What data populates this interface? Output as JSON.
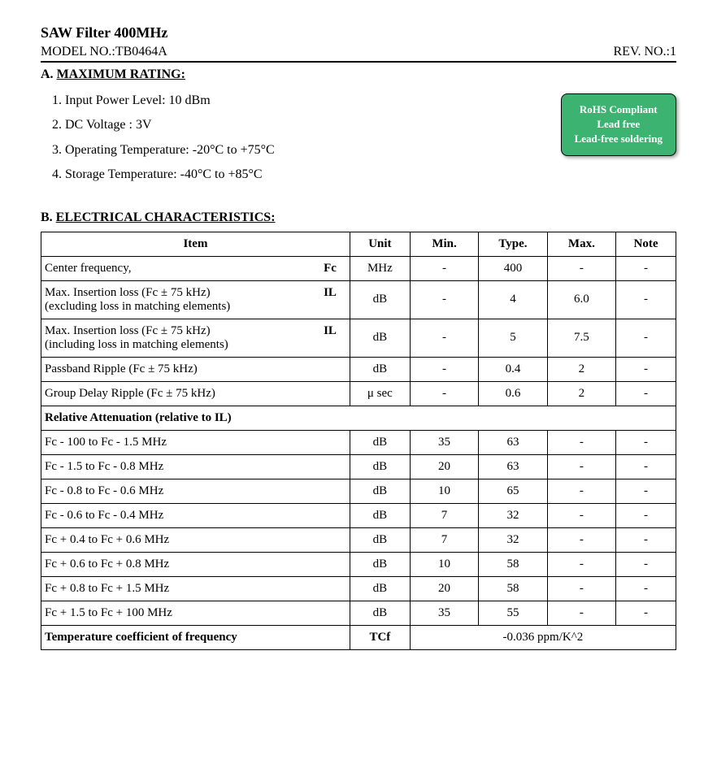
{
  "header": {
    "title": "SAW Filter 400MHz",
    "model_label": "MODEL NO.:TB0464A",
    "rev_label": "REV. NO.:1"
  },
  "sectionA": {
    "heading_prefix": "A. ",
    "heading": "MAXIMUM RATING:",
    "items": [
      "1. Input Power Level: 10 dBm",
      "2. DC Voltage : 3V",
      "3. Operating Temperature: -20°C to +75°C",
      "4. Storage Temperature: -40°C to +85°C"
    ],
    "badge": {
      "line1": "RoHS Compliant",
      "line2": "Lead free",
      "line3": "Lead-free soldering",
      "bg": "#3cb371",
      "fg": "#ffffff"
    }
  },
  "sectionB": {
    "heading_prefix": "B. ",
    "heading": "ELECTRICAL CHARACTERISTICS:",
    "columns": [
      "Item",
      "Unit",
      "Min.",
      "Type.",
      "Max.",
      "Note"
    ],
    "rows": [
      {
        "item": "Center frequency,",
        "sym": "Fc",
        "unit": "MHz",
        "min": "-",
        "type": "400",
        "max": "-",
        "note": "-"
      },
      {
        "item": "Max. Insertion loss (Fc ± 75 kHz)",
        "sub": "(excluding loss in matching elements)",
        "sym": "IL",
        "unit": "dB",
        "min": "-",
        "type": "4",
        "max": "6.0",
        "note": "-"
      },
      {
        "item": "Max. Insertion loss (Fc ± 75 kHz)",
        "sub": "(including loss in matching elements)",
        "sym": "IL",
        "unit": "dB",
        "min": "-",
        "type": "5",
        "max": "7.5",
        "note": "-"
      },
      {
        "item": "Passband Ripple (Fc ± 75 kHz)",
        "unit": "dB",
        "min": "-",
        "type": "0.4",
        "max": "2",
        "note": "-"
      },
      {
        "item": "Group Delay Ripple (Fc ± 75 kHz)",
        "unit": "μ sec",
        "min": "-",
        "type": "0.6",
        "max": "2",
        "note": "-"
      }
    ],
    "subheading": "Relative Attenuation (relative to IL)",
    "atten_rows": [
      {
        "item": "Fc - 100 to Fc - 1.5 MHz",
        "unit": "dB",
        "min": "35",
        "type": "63",
        "max": "-",
        "note": "-"
      },
      {
        "item": "Fc - 1.5 to Fc - 0.8 MHz",
        "unit": "dB",
        "min": "20",
        "type": "63",
        "max": "-",
        "note": "-"
      },
      {
        "item": "Fc - 0.8 to Fc - 0.6 MHz",
        "unit": "dB",
        "min": "10",
        "type": "65",
        "max": "-",
        "note": "-"
      },
      {
        "item": "Fc - 0.6 to Fc - 0.4 MHz",
        "unit": "dB",
        "min": "7",
        "type": "32",
        "max": "-",
        "note": "-"
      },
      {
        "item": "Fc + 0.4 to Fc + 0.6 MHz",
        "unit": "dB",
        "min": "7",
        "type": "32",
        "max": "-",
        "note": "-"
      },
      {
        "item": "Fc + 0.6 to Fc + 0.8 MHz",
        "unit": "dB",
        "min": "10",
        "type": "58",
        "max": "-",
        "note": "-"
      },
      {
        "item": "Fc + 0.8 to Fc + 1.5 MHz",
        "unit": "dB",
        "min": "20",
        "type": "58",
        "max": "-",
        "note": "-"
      },
      {
        "item": "Fc + 1.5 to Fc + 100 MHz",
        "unit": "dB",
        "min": "35",
        "type": "55",
        "max": "-",
        "note": "-"
      }
    ],
    "tcf": {
      "label": "Temperature coefficient of frequency",
      "sym": "TCf",
      "value": "-0.036 ppm/K^2"
    }
  }
}
